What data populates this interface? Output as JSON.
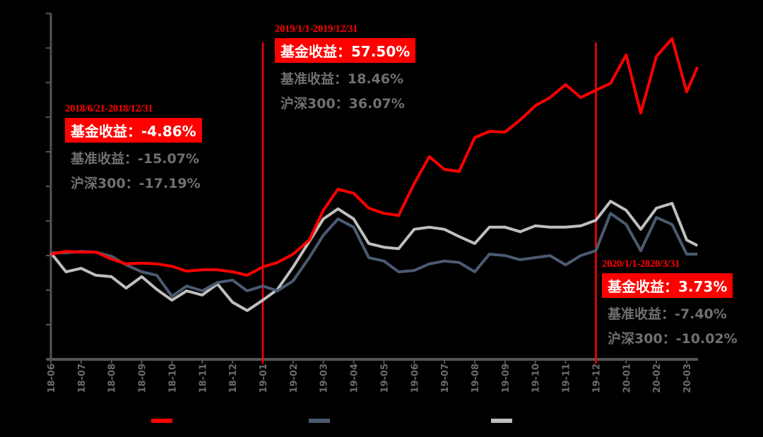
{
  "chart_data": {
    "type": "line",
    "title": "",
    "xlabel": "",
    "ylabel": "",
    "y_tick_labels_shown": false,
    "y_tick_count": 11,
    "grid": false,
    "legend": {
      "placement": "bottom",
      "labels_shown": false
    },
    "x_tick_labels": [
      "18-06",
      "18-07",
      "18-08",
      "18-09",
      "18-10",
      "18-11",
      "18-12",
      "19-01",
      "19-02",
      "19-03",
      "19-04",
      "19-05",
      "19-06",
      "19-07",
      "19-08",
      "19-09",
      "19-10",
      "19-11",
      "19-12",
      "20-01",
      "20-02",
      "20-03"
    ],
    "x": [
      "2018-06-01",
      "2018-06-16",
      "2018-07-01",
      "2018-07-16",
      "2018-08-01",
      "2018-08-16",
      "2018-09-01",
      "2018-09-16",
      "2018-10-01",
      "2018-10-16",
      "2018-11-01",
      "2018-11-16",
      "2018-12-01",
      "2018-12-16",
      "2019-01-01",
      "2019-01-16",
      "2019-02-01",
      "2019-02-16",
      "2019-03-01",
      "2019-03-16",
      "2019-04-01",
      "2019-04-16",
      "2019-05-01",
      "2019-05-16",
      "2019-06-01",
      "2019-06-16",
      "2019-07-01",
      "2019-07-16",
      "2019-08-01",
      "2019-08-16",
      "2019-09-01",
      "2019-09-16",
      "2019-10-01",
      "2019-10-16",
      "2019-11-01",
      "2019-11-16",
      "2019-12-01",
      "2019-12-16",
      "2020-01-01",
      "2020-01-16",
      "2020-02-01",
      "2020-02-16",
      "2020-03-01",
      "2020-03-12"
    ],
    "series": [
      {
        "color": "#ff0000",
        "values": [
          1.004,
          1.012,
          1.01,
          1.01,
          0.99,
          0.976,
          0.978,
          0.976,
          0.969,
          0.955,
          0.959,
          0.959,
          0.953,
          0.943,
          0.967,
          0.98,
          1.004,
          1.045,
          1.131,
          1.192,
          1.18,
          1.137,
          1.122,
          1.116,
          1.208,
          1.286,
          1.249,
          1.243,
          1.341,
          1.359,
          1.357,
          1.392,
          1.433,
          1.457,
          1.494,
          1.457,
          1.478,
          1.498,
          1.58,
          1.412,
          1.576,
          1.627,
          1.473,
          1.545
        ]
      },
      {
        "color": "#4b5a72",
        "values": [
          1.008,
          1.008,
          1.012,
          1.01,
          0.998,
          0.973,
          0.953,
          0.943,
          0.882,
          0.912,
          0.898,
          0.922,
          0.929,
          0.898,
          0.912,
          0.898,
          0.927,
          0.994,
          1.059,
          1.106,
          1.082,
          0.994,
          0.984,
          0.953,
          0.957,
          0.976,
          0.984,
          0.98,
          0.953,
          1.004,
          1.0,
          0.988,
          0.994,
          1.0,
          0.973,
          1.0,
          1.014,
          1.122,
          1.09,
          1.014,
          1.11,
          1.09,
          1.004,
          1.004
        ]
      },
      {
        "color": "#bfbfbf",
        "values": [
          1.008,
          0.953,
          0.963,
          0.943,
          0.939,
          0.906,
          0.939,
          0.902,
          0.871,
          0.898,
          0.886,
          0.918,
          0.865,
          0.841,
          0.871,
          0.902,
          0.967,
          1.041,
          1.106,
          1.135,
          1.106,
          1.035,
          1.024,
          1.02,
          1.076,
          1.082,
          1.076,
          1.055,
          1.035,
          1.082,
          1.082,
          1.069,
          1.086,
          1.082,
          1.082,
          1.086,
          1.102,
          1.157,
          1.131,
          1.076,
          1.137,
          1.151,
          1.045,
          1.029
        ]
      }
    ],
    "ylim": [
      0.7,
      1.7
    ],
    "period_markers": [
      "2019-01-01",
      "2019-12-01"
    ],
    "annotations": [
      {
        "period": "2018/6/21-2018/12/31",
        "fund": "基金收益：-4.86%",
        "benchmark": "基准收益：-15.07%",
        "csi300": "沪深300：-17.19%"
      },
      {
        "period": "2019/1/1-2019/12/31",
        "fund": "基金收益：57.50%",
        "benchmark": "基准收益：18.46%",
        "csi300": "沪深300：36.07%"
      },
      {
        "period": "2020/1/1-2020/3/31",
        "fund": "基金收益：3.73%",
        "benchmark": "基准收益：-7.40%",
        "csi300": "沪深300：-10.02%"
      }
    ],
    "colors": {
      "axis": "#555555",
      "tick_label": "#6b6b6b",
      "marker": "#ff0000",
      "background": "#000000"
    }
  }
}
